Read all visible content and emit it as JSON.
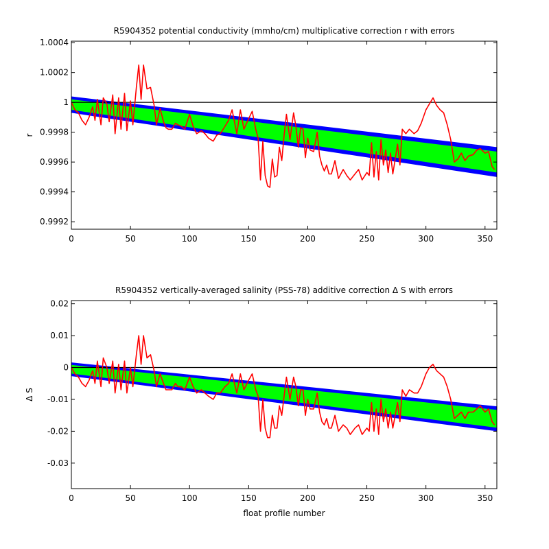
{
  "chart_data": [
    {
      "type": "line",
      "title": "R5904352 potential conductivity (mmho/cm) multiplicative correction r with errors",
      "xlabel": "",
      "ylabel": "r",
      "xlim": [
        0,
        360
      ],
      "ylim": [
        0.99915,
        1.00041
      ],
      "xticks": [
        0,
        50,
        100,
        150,
        200,
        250,
        300,
        350
      ],
      "yticks": [
        0.9992,
        0.9994,
        0.9996,
        0.9998,
        1,
        1.0002,
        1.0004
      ],
      "ytick_labels": [
        "0.9992",
        "0.9994",
        "0.9996",
        "0.9998",
        "1",
        "1.0002",
        "1.0004"
      ],
      "grid": false,
      "reference_line": 1,
      "bands": {
        "x": [
          0,
          360
        ],
        "outer_upper": [
          1.00004,
          0.9997
        ],
        "outer_lower": [
          0.99993,
          0.9995
        ],
        "inner_upper": [
          1.00002,
          0.99967
        ],
        "inner_lower": [
          0.99995,
          0.99953
        ]
      },
      "series": [
        {
          "color": "#ff0000",
          "x": [
            0,
            3,
            6,
            9,
            12,
            15,
            18,
            20,
            22,
            25,
            27,
            30,
            32,
            35,
            37,
            40,
            42,
            45,
            47,
            50,
            52,
            55,
            57,
            59,
            61,
            64,
            67,
            70,
            72,
            75,
            78,
            80,
            82,
            85,
            88,
            90,
            93,
            96,
            100,
            103,
            106,
            110,
            113,
            116,
            120,
            123,
            126,
            130,
            133,
            136,
            140,
            143,
            146,
            150,
            153,
            156,
            158,
            160,
            162,
            164,
            166,
            168,
            170,
            172,
            174,
            176,
            178,
            180,
            182,
            185,
            188,
            190,
            192,
            194,
            196,
            198,
            200,
            202,
            205,
            208,
            210,
            212,
            214,
            216,
            218,
            220,
            223,
            226,
            230,
            233,
            236,
            240,
            243,
            246,
            250,
            252,
            254,
            256,
            258,
            260,
            262,
            264,
            266,
            268,
            270,
            272,
            274,
            276,
            278,
            280,
            283,
            286,
            290,
            293,
            296,
            300,
            303,
            306,
            309,
            312,
            315,
            318,
            321,
            324,
            327,
            330,
            333,
            336,
            340,
            343,
            346,
            350,
            353,
            356,
            358
          ],
          "values": [
            1.0,
            0.99995,
            0.99993,
            0.99988,
            0.99985,
            0.9999,
            0.99997,
            0.99988,
            1.00002,
            0.99985,
            1.00003,
            0.99999,
            0.99987,
            1.00005,
            0.99979,
            1.00003,
            0.99982,
            1.00006,
            0.99981,
            1.00001,
            0.99985,
            1.0001,
            1.00025,
            1.00002,
            1.00025,
            1.00009,
            1.0001,
            0.99998,
            0.99985,
            0.99996,
            0.99987,
            0.99983,
            0.99982,
            0.99982,
            0.99986,
            0.99985,
            0.99984,
            0.99982,
            0.99992,
            0.99984,
            0.99979,
            0.99981,
            0.99979,
            0.99976,
            0.99974,
            0.99978,
            0.99979,
            0.99984,
            0.99988,
            0.99995,
            0.99979,
            0.99995,
            0.99982,
            0.99989,
            0.99994,
            0.99982,
            0.99976,
            0.99948,
            0.99974,
            0.99951,
            0.99944,
            0.99943,
            0.99962,
            0.9995,
            0.99951,
            0.9997,
            0.99961,
            0.99978,
            0.99992,
            0.99975,
            0.99993,
            0.99984,
            0.9997,
            0.99983,
            0.99982,
            0.99963,
            0.99976,
            0.99968,
            0.99967,
            0.9998,
            0.99964,
            0.99958,
            0.99954,
            0.99958,
            0.99952,
            0.99952,
            0.99961,
            0.99949,
            0.99955,
            0.99951,
            0.99948,
            0.99952,
            0.99955,
            0.99948,
            0.99953,
            0.99951,
            0.99973,
            0.9995,
            0.99967,
            0.99948,
            0.99975,
            0.99958,
            0.99968,
            0.99953,
            0.99966,
            0.99952,
            0.99962,
            0.99972,
            0.99958,
            0.99982,
            0.99979,
            0.99982,
            0.99979,
            0.99981,
            0.99986,
            0.99995,
            0.99999,
            1.00003,
            0.99998,
            0.99995,
            0.99993,
            0.99985,
            0.99975,
            0.9996,
            0.99962,
            0.99966,
            0.99961,
            0.99964,
            0.99965,
            0.99968,
            0.99969,
            0.99966,
            0.99967,
            0.99957,
            0.99955
          ]
        }
      ]
    },
    {
      "type": "line",
      "title": "R5904352 vertically-averaged salinity (PSS-78) additive correction Δ S with errors",
      "xlabel": "float profile number",
      "ylabel": "Δ S",
      "xlim": [
        0,
        360
      ],
      "ylim": [
        -0.038,
        0.021
      ],
      "xticks": [
        0,
        50,
        100,
        150,
        200,
        250,
        300,
        350
      ],
      "yticks": [
        -0.03,
        -0.02,
        -0.01,
        0,
        0.01,
        0.02
      ],
      "ytick_labels": [
        "-0.03",
        "-0.02",
        "-0.01",
        "0",
        "0.01",
        "0.02"
      ],
      "grid": false,
      "reference_line": 0,
      "bands": {
        "x": [
          0,
          360
        ],
        "outer_upper": [
          0.0016,
          -0.0122
        ],
        "outer_lower": [
          -0.0027,
          -0.02
        ],
        "inner_upper": [
          0.0008,
          -0.0133
        ],
        "inner_lower": [
          -0.0019,
          -0.0189
        ]
      },
      "series": [
        {
          "color": "#ff0000",
          "x": [
            0,
            3,
            6,
            9,
            12,
            15,
            18,
            20,
            22,
            25,
            27,
            30,
            32,
            35,
            37,
            40,
            42,
            45,
            47,
            50,
            52,
            55,
            57,
            59,
            61,
            64,
            67,
            70,
            72,
            75,
            78,
            80,
            82,
            85,
            88,
            90,
            93,
            96,
            100,
            103,
            106,
            110,
            113,
            116,
            120,
            123,
            126,
            130,
            133,
            136,
            140,
            143,
            146,
            150,
            153,
            156,
            158,
            160,
            162,
            164,
            166,
            168,
            170,
            172,
            174,
            176,
            178,
            180,
            182,
            185,
            188,
            190,
            192,
            194,
            196,
            198,
            200,
            202,
            205,
            208,
            210,
            212,
            214,
            216,
            218,
            220,
            223,
            226,
            230,
            233,
            236,
            240,
            243,
            246,
            250,
            252,
            254,
            256,
            258,
            260,
            262,
            264,
            266,
            268,
            270,
            272,
            274,
            276,
            278,
            280,
            283,
            286,
            290,
            293,
            296,
            300,
            303,
            306,
            309,
            312,
            315,
            318,
            321,
            324,
            327,
            330,
            333,
            336,
            340,
            343,
            346,
            350,
            353,
            356,
            358
          ],
          "values": [
            0.0,
            -0.002,
            -0.003,
            -0.005,
            -0.006,
            -0.004,
            -0.001,
            -0.005,
            0.002,
            -0.006,
            0.003,
            0.0,
            -0.005,
            0.002,
            -0.008,
            0.001,
            -0.007,
            0.002,
            -0.008,
            0.0,
            -0.006,
            0.004,
            0.01,
            0.001,
            0.01,
            0.003,
            0.004,
            -0.001,
            -0.006,
            -0.002,
            -0.005,
            -0.007,
            -0.007,
            -0.007,
            -0.005,
            -0.006,
            -0.006,
            -0.007,
            -0.003,
            -0.006,
            -0.008,
            -0.007,
            -0.008,
            -0.009,
            -0.01,
            -0.008,
            -0.008,
            -0.006,
            -0.005,
            -0.002,
            -0.008,
            -0.002,
            -0.007,
            -0.004,
            -0.002,
            -0.007,
            -0.009,
            -0.02,
            -0.01,
            -0.019,
            -0.022,
            -0.022,
            -0.015,
            -0.019,
            -0.019,
            -0.012,
            -0.015,
            -0.009,
            -0.003,
            -0.01,
            -0.003,
            -0.006,
            -0.012,
            -0.007,
            -0.007,
            -0.015,
            -0.01,
            -0.013,
            -0.013,
            -0.008,
            -0.014,
            -0.017,
            -0.018,
            -0.016,
            -0.019,
            -0.019,
            -0.015,
            -0.02,
            -0.018,
            -0.019,
            -0.021,
            -0.019,
            -0.018,
            -0.021,
            -0.019,
            -0.02,
            -0.011,
            -0.02,
            -0.013,
            -0.021,
            -0.01,
            -0.017,
            -0.013,
            -0.019,
            -0.014,
            -0.019,
            -0.015,
            -0.011,
            -0.017,
            -0.007,
            -0.009,
            -0.007,
            -0.008,
            -0.008,
            -0.006,
            -0.002,
            0.0,
            0.001,
            -0.001,
            -0.002,
            -0.003,
            -0.006,
            -0.01,
            -0.016,
            -0.015,
            -0.014,
            -0.016,
            -0.014,
            -0.014,
            -0.013,
            -0.012,
            -0.014,
            -0.013,
            -0.017,
            -0.018
          ]
        }
      ]
    }
  ]
}
